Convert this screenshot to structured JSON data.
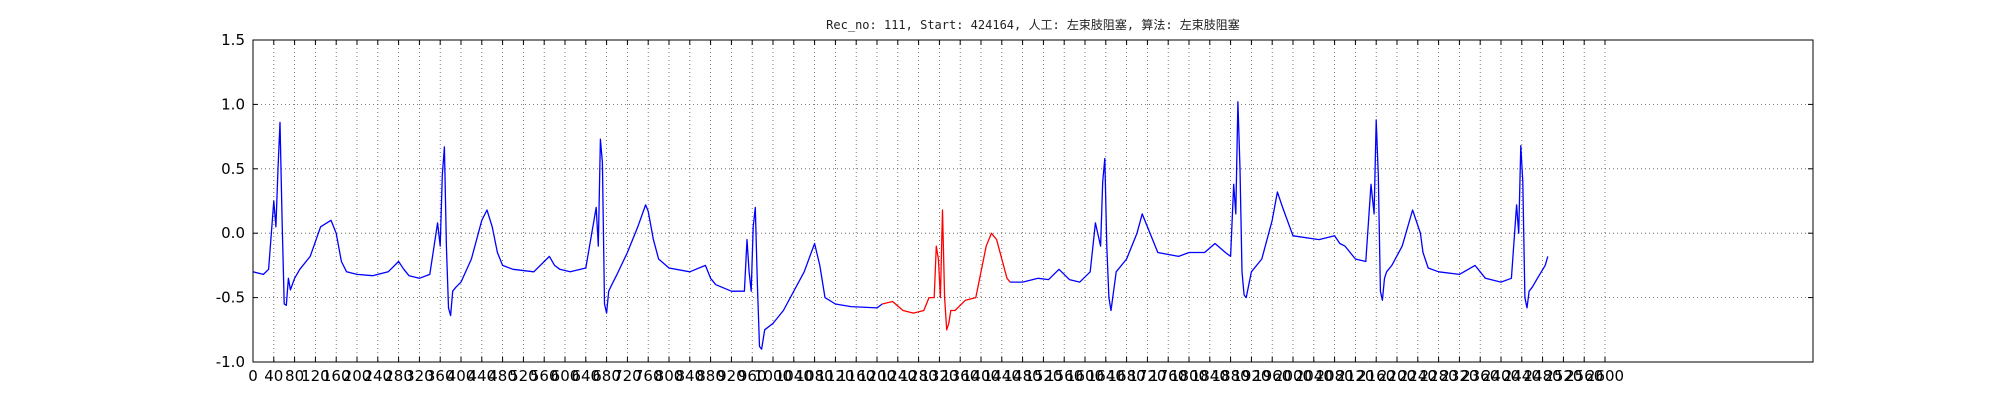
{
  "chart_data": {
    "type": "line",
    "title": "Rec_no: 111, Start: 424164, 人工: 左束肢阻塞, 算法: 左束肢阻塞",
    "xlabel": "",
    "ylabel": "",
    "xlim": [
      0,
      3000
    ],
    "ylim": [
      -1.0,
      1.5
    ],
    "grid": true,
    "y_ticks": [
      "-1.0",
      "-0.5",
      "0.0",
      "0.5",
      "1.0",
      "1.5"
    ],
    "x_ticks": [
      "0",
      "40",
      "80",
      "120",
      "160",
      "200",
      "240",
      "280",
      "320",
      "360",
      "400",
      "440",
      "480",
      "520",
      "560",
      "600",
      "640",
      "680",
      "720",
      "760",
      "800",
      "840",
      "880",
      "920",
      "960",
      "1000",
      "1040",
      "1080",
      "1120",
      "1160",
      "1200",
      "1240",
      "1280",
      "1320",
      "1360",
      "1400",
      "1440",
      "1480",
      "1520",
      "1560",
      "1600",
      "1640",
      "1680",
      "1720",
      "1760",
      "1800",
      "1840",
      "1880",
      "1920",
      "1960",
      "2000",
      "2040",
      "2080",
      "2120",
      "2160",
      "2200",
      "2240",
      "2280",
      "2320",
      "2360",
      "2400",
      "2440",
      "2480",
      "2520",
      "2560",
      "2600"
    ],
    "series": [
      {
        "color": "#0000ff",
        "segment": "before",
        "x": [
          0,
          20,
          30,
          40,
          44,
          48,
          52,
          56,
          60,
          64,
          68,
          72,
          80,
          90,
          110,
          130,
          150,
          160,
          170,
          180,
          200,
          230,
          260,
          280,
          290,
          300,
          320,
          340,
          355,
          360,
          364,
          368,
          372,
          376,
          380,
          384,
          390,
          400,
          420,
          440,
          450,
          460,
          470,
          480,
          500,
          540,
          570,
          580,
          590,
          610,
          640,
          660,
          664,
          668,
          672,
          676,
          680,
          684,
          690,
          700,
          720,
          740,
          755,
          760,
          770,
          780,
          800,
          840,
          870,
          880,
          890,
          920,
          945,
          950,
          954,
          958,
          962,
          966,
          970,
          974,
          978,
          984,
          1000,
          1020,
          1060,
          1080,
          1090,
          1100,
          1120,
          1150,
          1200,
          1210
        ],
        "y": [
          -0.3,
          -0.32,
          -0.28,
          0.25,
          0.05,
          0.5,
          0.86,
          0.1,
          -0.55,
          -0.56,
          -0.35,
          -0.44,
          -0.35,
          -0.28,
          -0.18,
          0.05,
          0.1,
          0.0,
          -0.22,
          -0.3,
          -0.32,
          -0.33,
          -0.3,
          -0.22,
          -0.28,
          -0.33,
          -0.35,
          -0.32,
          0.08,
          -0.1,
          0.45,
          0.67,
          -0.1,
          -0.58,
          -0.64,
          -0.45,
          -0.42,
          -0.38,
          -0.2,
          0.1,
          0.18,
          0.05,
          -0.15,
          -0.25,
          -0.28,
          -0.3,
          -0.18,
          -0.25,
          -0.28,
          -0.3,
          -0.27,
          0.2,
          -0.1,
          0.73,
          0.55,
          -0.55,
          -0.62,
          -0.45,
          -0.4,
          -0.32,
          -0.15,
          0.05,
          0.22,
          0.17,
          -0.05,
          -0.2,
          -0.27,
          -0.3,
          -0.25,
          -0.35,
          -0.4,
          -0.45,
          -0.45,
          -0.05,
          -0.3,
          -0.45,
          0.05,
          0.2,
          -0.4,
          -0.88,
          -0.9,
          -0.75,
          -0.7,
          -0.6,
          -0.3,
          -0.08,
          -0.25,
          -0.5,
          -0.55,
          -0.57,
          -0.58,
          -0.55
        ]
      },
      {
        "color": "#ff0000",
        "segment": "highlight",
        "x": [
          1210,
          1230,
          1250,
          1270,
          1290,
          1300,
          1310,
          1314,
          1318,
          1322,
          1326,
          1330,
          1334,
          1338,
          1342,
          1350,
          1370,
          1390,
          1400,
          1410,
          1420,
          1430,
          1440,
          1450,
          1456
        ],
        "y": [
          -0.55,
          -0.53,
          -0.6,
          -0.62,
          -0.6,
          -0.5,
          -0.5,
          -0.1,
          -0.2,
          -0.5,
          0.18,
          -0.5,
          -0.75,
          -0.7,
          -0.6,
          -0.6,
          -0.52,
          -0.5,
          -0.3,
          -0.1,
          0.0,
          -0.05,
          -0.2,
          -0.35,
          -0.38
        ]
      },
      {
        "color": "#0000ff",
        "segment": "after",
        "x": [
          1456,
          1480,
          1510,
          1530,
          1550,
          1570,
          1590,
          1610,
          1620,
          1630,
          1634,
          1638,
          1642,
          1646,
          1650,
          1660,
          1680,
          1700,
          1710,
          1720,
          1740,
          1780,
          1800,
          1830,
          1850,
          1870,
          1880,
          1886,
          1890,
          1894,
          1898,
          1902,
          1906,
          1910,
          1920,
          1940,
          1960,
          1970,
          1980,
          2000,
          2050,
          2080,
          2090,
          2100,
          2120,
          2140,
          2150,
          2156,
          2160,
          2164,
          2168,
          2172,
          2176,
          2180,
          2190,
          2210,
          2230,
          2245,
          2250,
          2260,
          2280,
          2320,
          2350,
          2360,
          2370,
          2400,
          2420,
          2430,
          2434,
          2438,
          2442,
          2446,
          2450,
          2454,
          2460,
          2470,
          2485,
          2490
        ],
        "y": [
          -0.38,
          -0.38,
          -0.35,
          -0.36,
          -0.28,
          -0.36,
          -0.38,
          -0.3,
          0.08,
          -0.1,
          0.4,
          0.58,
          -0.1,
          -0.5,
          -0.6,
          -0.3,
          -0.2,
          0.0,
          0.15,
          0.05,
          -0.15,
          -0.18,
          -0.15,
          -0.15,
          -0.08,
          -0.15,
          -0.18,
          0.38,
          0.15,
          1.02,
          0.5,
          -0.3,
          -0.48,
          -0.5,
          -0.3,
          -0.2,
          0.1,
          0.32,
          0.2,
          -0.02,
          -0.05,
          -0.02,
          -0.08,
          -0.1,
          -0.2,
          -0.22,
          0.38,
          0.15,
          0.88,
          0.45,
          -0.45,
          -0.52,
          -0.35,
          -0.3,
          -0.25,
          -0.1,
          0.18,
          0.0,
          -0.15,
          -0.27,
          -0.3,
          -0.32,
          -0.25,
          -0.3,
          -0.35,
          -0.38,
          -0.35,
          0.22,
          0.0,
          0.68,
          0.4,
          -0.5,
          -0.58,
          -0.45,
          -0.42,
          -0.35,
          -0.25,
          -0.18
        ]
      }
    ]
  }
}
